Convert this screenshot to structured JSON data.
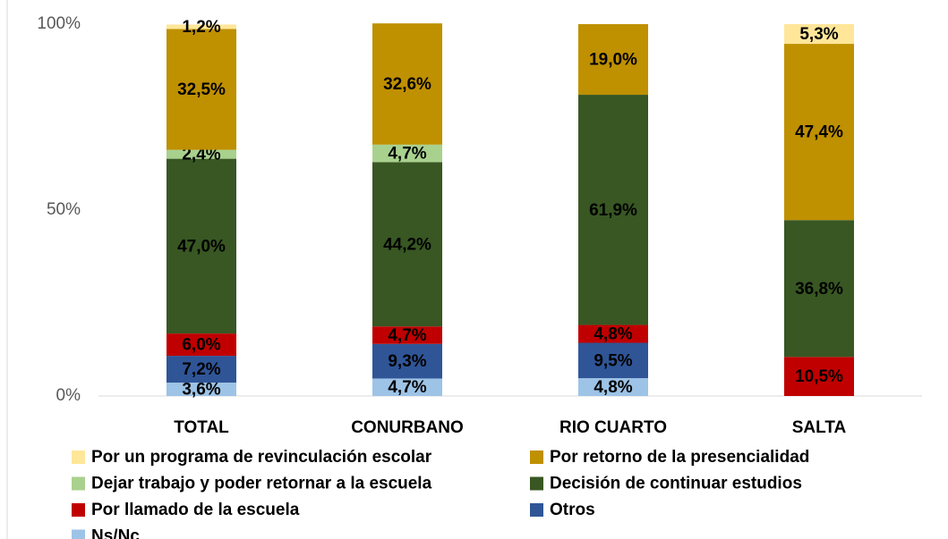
{
  "chart_data": {
    "type": "stacked_bar",
    "categories": [
      "TOTAL",
      "CONURBANO",
      "RIO CUARTO",
      "SALTA"
    ],
    "series": [
      {
        "name": "Ns/Nc",
        "color": "#9dc3e6",
        "values": [
          3.6,
          4.7,
          4.8,
          null
        ],
        "value_labels": [
          "3,6%",
          "4,7%",
          "4,8%",
          null
        ]
      },
      {
        "name": "Otros",
        "color": "#2f5597",
        "values": [
          7.2,
          9.3,
          9.5,
          null
        ],
        "value_labels": [
          "7,2%",
          "9,3%",
          "9,5%",
          null
        ]
      },
      {
        "name": "Por llamado de la escuela",
        "color": "#c00000",
        "values": [
          6.0,
          4.7,
          4.8,
          10.5
        ],
        "value_labels": [
          "6,0%",
          "4,7%",
          "4,8%",
          "10,5%"
        ]
      },
      {
        "name": "Decisión de continuar estudios",
        "color": "#385723",
        "values": [
          47.0,
          44.2,
          61.9,
          36.8
        ],
        "value_labels": [
          "47,0%",
          "44,2%",
          "61,9%",
          "36,8%"
        ]
      },
      {
        "name": "Dejar trabajo y poder retornar a la escuela",
        "color": "#a9d18e",
        "values": [
          2.4,
          4.7,
          null,
          null
        ],
        "value_labels": [
          "2,4%",
          "4,7%",
          null,
          null
        ]
      },
      {
        "name": "Por retorno de la presencialidad",
        "color": "#bf9000",
        "values": [
          32.5,
          32.6,
          19.0,
          47.4
        ],
        "value_labels": [
          "32,5%",
          "32,6%",
          "19,0%",
          "47,4%"
        ]
      },
      {
        "name": "Por un programa de revinculación escolar",
        "color": "#ffe699",
        "values": [
          1.2,
          null,
          null,
          5.3
        ],
        "value_labels": [
          "1,2%",
          null,
          null,
          "5,3%"
        ]
      }
    ],
    "ylim": [
      0,
      100
    ],
    "yticks": [
      {
        "value": 0,
        "label": "0%"
      },
      {
        "value": 50,
        "label": "50%"
      },
      {
        "value": 100,
        "label": "100%"
      }
    ]
  }
}
